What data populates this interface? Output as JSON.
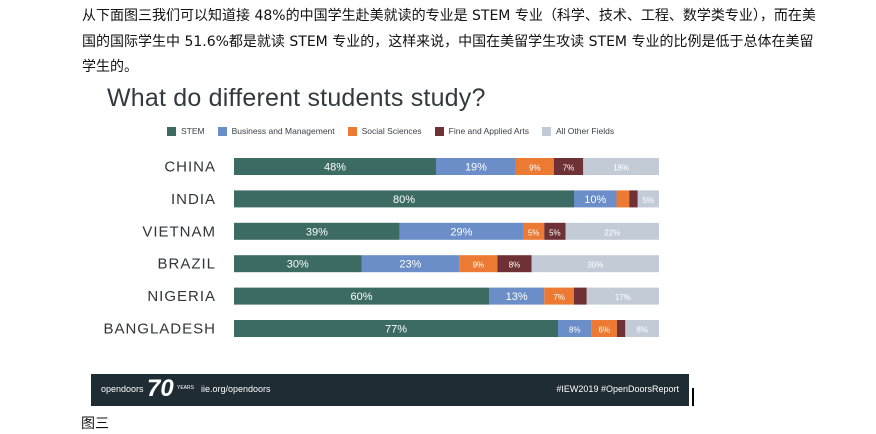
{
  "article": {
    "paragraph": "从下面图三我们可以知道接 48%的中国学生赴美就读的专业是 STEM 专业（科学、技术、工程、数学类专业），而在美国的国际学生中 51.6%都是就读 STEM 专业的，这样来说，中国在美留学生攻读 STEM 专业的比例是低于总体在美留学生的。",
    "caption": "图三"
  },
  "footer": {
    "brand_text": "opendoors",
    "brand_number": "70",
    "brand_years": "YEARS",
    "link": "iie.org/opendoors",
    "hashtags": "#IEW2019  #OpenDoorsReport"
  },
  "colors": {
    "stem": "#3b6b62",
    "business": "#6b8ec8",
    "social": "#ed7a32",
    "fine_arts": "#6e3236",
    "other": "#c3ccd6"
  },
  "chart_data": {
    "type": "bar",
    "orientation": "horizontal",
    "stacked": true,
    "title": "What do different students study?",
    "categories": [
      "CHINA",
      "INDIA",
      "VIETNAM",
      "BRAZIL",
      "NIGERIA",
      "BANGLADESH"
    ],
    "series": [
      {
        "name": "STEM",
        "color": "#3b6b62",
        "values": [
          48,
          80,
          39,
          30,
          60,
          77
        ],
        "labels": [
          "48%",
          "80%",
          "39%",
          "30%",
          "60%",
          "77%"
        ]
      },
      {
        "name": "Business and Management",
        "color": "#6b8ec8",
        "values": [
          19,
          10,
          29,
          23,
          13,
          8
        ],
        "labels": [
          "19%",
          "10%",
          "29%",
          "23%",
          "13%",
          "8%"
        ]
      },
      {
        "name": "Social Sciences",
        "color": "#ed7a32",
        "values": [
          9,
          3,
          5,
          9,
          7,
          6
        ],
        "labels": [
          "9%",
          "",
          "5%",
          "9%",
          "7%",
          "6%"
        ]
      },
      {
        "name": "Fine and Applied Arts",
        "color": "#6e3236",
        "values": [
          7,
          2,
          5,
          8,
          3,
          2
        ],
        "labels": [
          "7%",
          "",
          "5%",
          "8%",
          "",
          ""
        ]
      },
      {
        "name": "All Other Fields",
        "color": "#c3ccd6",
        "values": [
          18,
          5,
          22,
          30,
          17,
          8
        ],
        "labels": [
          "18%",
          "5%",
          "22%",
          "30%",
          "17%",
          "8%"
        ]
      }
    ],
    "legend_position": "top",
    "xlim": [
      0,
      100
    ]
  }
}
